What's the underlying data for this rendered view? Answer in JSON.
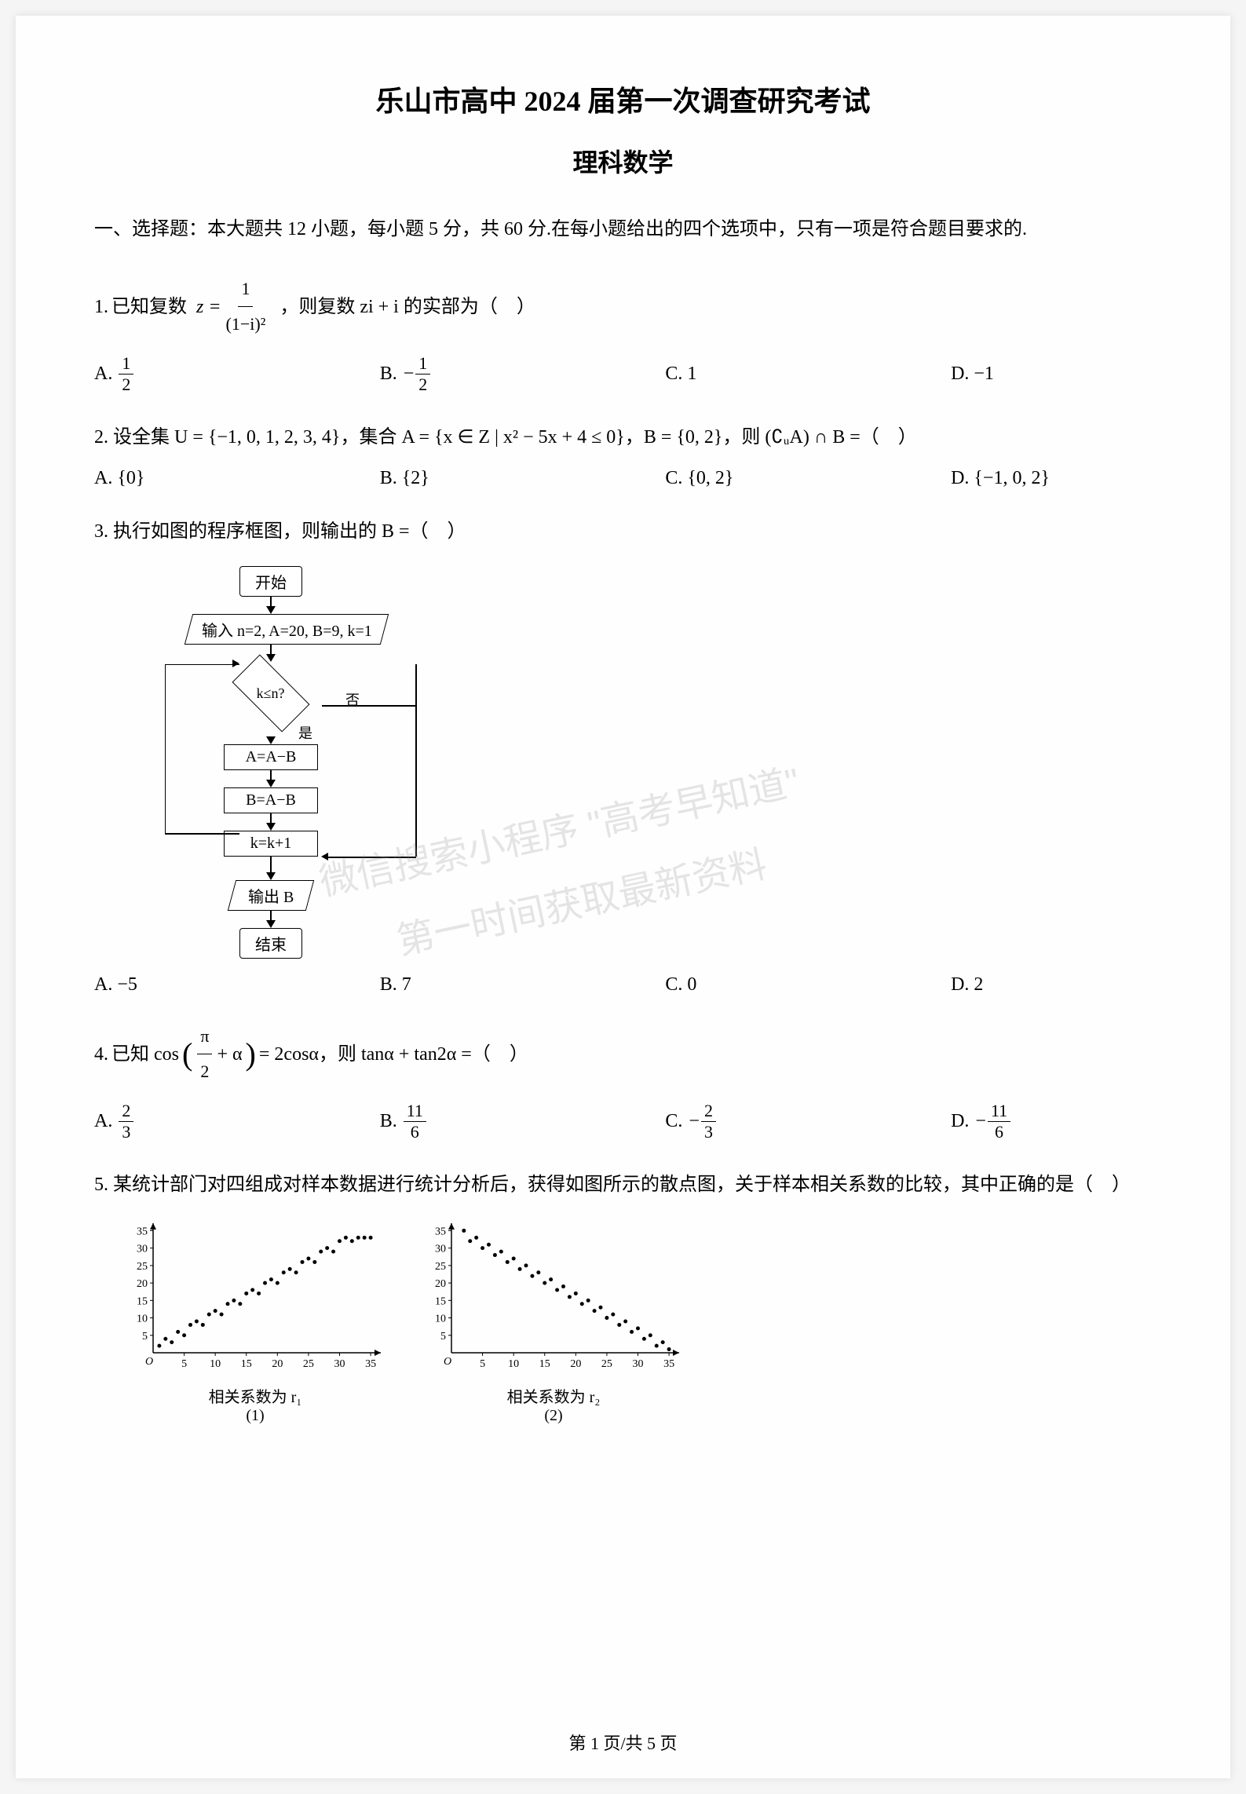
{
  "title": "乐山市高中 2024 届第一次调查研究考试",
  "subtitle": "理科数学",
  "section_header": "一、选择题：本大题共 12 小题，每小题 5 分，共 60 分.在每小题给出的四个选项中，只有一项是符合题目要求的.",
  "q1": {
    "number": "1.",
    "prefix": "已知复数",
    "z_expr_lhs": "z =",
    "frac_num": "1",
    "frac_den": "(1−i)²",
    "suffix": "，则复数 zi + i 的实部为（　）",
    "options": {
      "A": "A.",
      "A_frac_num": "1",
      "A_frac_den": "2",
      "B": "B.",
      "B_prefix": "−",
      "B_frac_num": "1",
      "B_frac_den": "2",
      "C": "C. 1",
      "D": "D. −1"
    }
  },
  "q2": {
    "text": "2. 设全集 U = {−1, 0, 1, 2, 3, 4}，集合 A = {x ∈ Z | x² − 5x + 4 ≤ 0}，B = {0, 2}，则 (∁ᵤA) ∩ B =（　）",
    "options": {
      "A": "A. {0}",
      "B": "B. {2}",
      "C": "C. {0, 2}",
      "D": "D. {−1, 0, 2}"
    }
  },
  "q3": {
    "text": "3. 执行如图的程序框图，则输出的 B =（　）",
    "flowchart": {
      "start": "开始",
      "input": "输入 n=2, A=20, B=9, k=1",
      "condition": "k≤n?",
      "yes": "是",
      "no": "否",
      "step1": "A=A−B",
      "step2": "B=A−B",
      "step3": "k=k+1",
      "output": "输出 B",
      "end": "结束"
    },
    "options": {
      "A": "A. −5",
      "B": "B. 7",
      "C": "C. 0",
      "D": "D. 2"
    }
  },
  "q4": {
    "number": "4.",
    "prefix": "已知 cos",
    "paren_content_frac_num": "π",
    "paren_content_frac_den": "2",
    "paren_plus": "+ α",
    "mid": "= 2cosα，则 tanα + tan2α =（　）",
    "options": {
      "A": "A.",
      "A_frac_num": "2",
      "A_frac_den": "3",
      "B": "B.",
      "B_frac_num": "11",
      "B_frac_den": "6",
      "C": "C.",
      "C_prefix": "−",
      "C_frac_num": "2",
      "C_frac_den": "3",
      "D": "D.",
      "D_prefix": "−",
      "D_frac_num": "11",
      "D_frac_den": "6"
    }
  },
  "q5": {
    "text": "5. 某统计部门对四组成对样本数据进行统计分析后，获得如图所示的散点图，关于样本相关系数的比较，其中正确的是（　）",
    "plot1": {
      "type": "scatter",
      "y_ticks": [
        0,
        5,
        10,
        15,
        20,
        25,
        30,
        35
      ],
      "x_ticks": [
        0,
        5,
        10,
        15,
        20,
        25,
        30,
        35
      ],
      "origin_label": "O",
      "caption": "相关系数为 r₁",
      "sub": "(1)",
      "points": [
        [
          1,
          2
        ],
        [
          2,
          4
        ],
        [
          3,
          3
        ],
        [
          4,
          6
        ],
        [
          5,
          5
        ],
        [
          6,
          8
        ],
        [
          7,
          9
        ],
        [
          8,
          8
        ],
        [
          9,
          11
        ],
        [
          10,
          12
        ],
        [
          11,
          11
        ],
        [
          12,
          14
        ],
        [
          13,
          15
        ],
        [
          14,
          14
        ],
        [
          15,
          17
        ],
        [
          16,
          18
        ],
        [
          17,
          17
        ],
        [
          18,
          20
        ],
        [
          19,
          21
        ],
        [
          20,
          20
        ],
        [
          21,
          23
        ],
        [
          22,
          24
        ],
        [
          23,
          23
        ],
        [
          24,
          26
        ],
        [
          25,
          27
        ],
        [
          26,
          26
        ],
        [
          27,
          29
        ],
        [
          28,
          30
        ],
        [
          29,
          29
        ],
        [
          30,
          32
        ],
        [
          31,
          33
        ],
        [
          32,
          32
        ],
        [
          33,
          33
        ],
        [
          34,
          33
        ],
        [
          35,
          33
        ]
      ],
      "point_color": "#000000",
      "axis_color": "#000000",
      "background": "#fefefe",
      "xlim": [
        0,
        36
      ],
      "ylim": [
        0,
        36
      ],
      "font_size": 14
    },
    "plot2": {
      "type": "scatter",
      "y_ticks": [
        0,
        5,
        10,
        15,
        20,
        25,
        30,
        35
      ],
      "x_ticks": [
        0,
        5,
        10,
        15,
        20,
        25,
        30,
        35
      ],
      "origin_label": "O",
      "caption": "相关系数为 r₂",
      "sub": "(2)",
      "points": [
        [
          2,
          35
        ],
        [
          3,
          32
        ],
        [
          4,
          33
        ],
        [
          5,
          30
        ],
        [
          6,
          31
        ],
        [
          7,
          28
        ],
        [
          8,
          29
        ],
        [
          9,
          26
        ],
        [
          10,
          27
        ],
        [
          11,
          24
        ],
        [
          12,
          25
        ],
        [
          13,
          22
        ],
        [
          14,
          23
        ],
        [
          15,
          20
        ],
        [
          16,
          21
        ],
        [
          17,
          18
        ],
        [
          18,
          19
        ],
        [
          19,
          16
        ],
        [
          20,
          17
        ],
        [
          21,
          14
        ],
        [
          22,
          15
        ],
        [
          23,
          12
        ],
        [
          24,
          13
        ],
        [
          25,
          10
        ],
        [
          26,
          11
        ],
        [
          27,
          8
        ],
        [
          28,
          9
        ],
        [
          29,
          6
        ],
        [
          30,
          7
        ],
        [
          31,
          4
        ],
        [
          32,
          5
        ],
        [
          33,
          2
        ],
        [
          34,
          3
        ],
        [
          35,
          1
        ]
      ],
      "point_color": "#000000",
      "axis_color": "#000000",
      "background": "#fefefe",
      "xlim": [
        0,
        36
      ],
      "ylim": [
        0,
        36
      ],
      "font_size": 14
    }
  },
  "watermark": {
    "line1": "微信搜索小程序 \"高考早知道\"",
    "line2": "第一时间获取最新资料"
  },
  "footer": "第 1 页/共 5 页"
}
